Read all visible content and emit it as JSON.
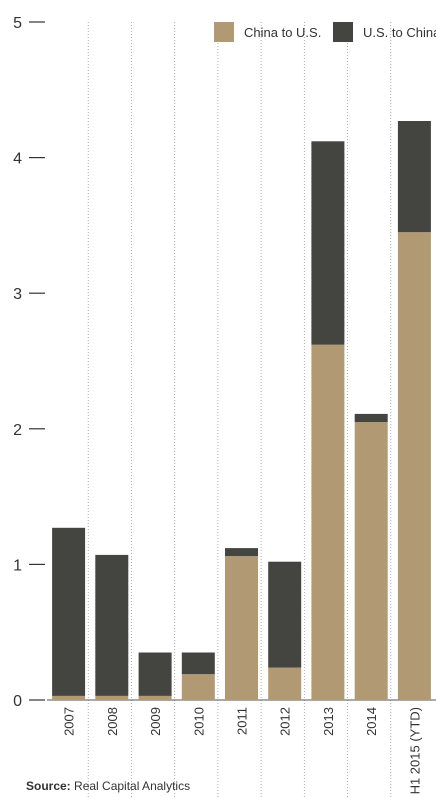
{
  "chart_data": {
    "type": "bar",
    "stacked": true,
    "categories": [
      "2007",
      "2008",
      "2009",
      "2010",
      "2011",
      "2012",
      "2013",
      "2014",
      "H1 2015 (YTD)"
    ],
    "series": [
      {
        "name": "China to U.S.",
        "color": "#b19a73",
        "values": [
          0.03,
          0.03,
          0.03,
          0.19,
          1.06,
          0.24,
          2.62,
          2.05,
          3.45
        ]
      },
      {
        "name": "U.S. to China",
        "color": "#444441",
        "values": [
          1.24,
          1.04,
          0.32,
          0.16,
          0.06,
          0.78,
          1.5,
          0.06,
          0.82
        ]
      }
    ],
    "y_ticks": [
      "0",
      "1",
      "2",
      "3",
      "4",
      "5"
    ],
    "ylim": [
      0,
      5
    ],
    "title": "",
    "xlabel": "",
    "ylabel": "",
    "legend_position": "top-right",
    "grid": "vertical dotted separators between categories"
  },
  "source": {
    "label": "Source:",
    "text": " Real Capital Analytics"
  }
}
